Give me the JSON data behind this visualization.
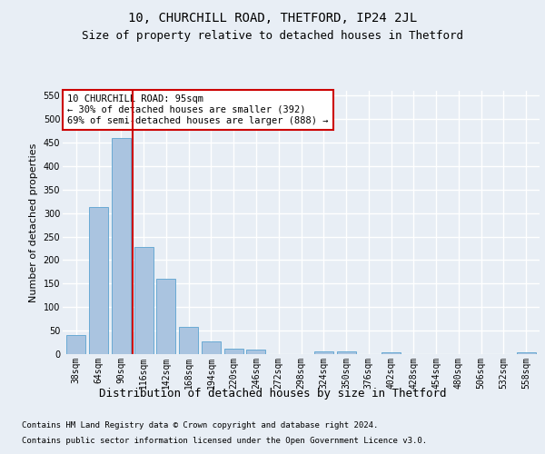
{
  "title1": "10, CHURCHILL ROAD, THETFORD, IP24 2JL",
  "title2": "Size of property relative to detached houses in Thetford",
  "xlabel": "Distribution of detached houses by size in Thetford",
  "ylabel": "Number of detached properties",
  "footnote1": "Contains HM Land Registry data © Crown copyright and database right 2024.",
  "footnote2": "Contains public sector information licensed under the Open Government Licence v3.0.",
  "categories": [
    "38sqm",
    "64sqm",
    "90sqm",
    "116sqm",
    "142sqm",
    "168sqm",
    "194sqm",
    "220sqm",
    "246sqm",
    "272sqm",
    "298sqm",
    "324sqm",
    "350sqm",
    "376sqm",
    "402sqm",
    "428sqm",
    "454sqm",
    "480sqm",
    "506sqm",
    "532sqm",
    "558sqm"
  ],
  "values": [
    40,
    312,
    460,
    228,
    160,
    57,
    27,
    12,
    9,
    0,
    0,
    5,
    6,
    0,
    3,
    0,
    0,
    0,
    0,
    0,
    4
  ],
  "bar_color": "#aac4e0",
  "bar_edge_color": "#6aaad4",
  "bar_edge_width": 0.7,
  "vline_x": 2.5,
  "vline_color": "#cc0000",
  "annotation_text": "10 CHURCHILL ROAD: 95sqm\n← 30% of detached houses are smaller (392)\n69% of semi-detached houses are larger (888) →",
  "annotation_box_color": "#ffffff",
  "annotation_box_edge_color": "#cc0000",
  "ylim": [
    0,
    560
  ],
  "yticks": [
    0,
    50,
    100,
    150,
    200,
    250,
    300,
    350,
    400,
    450,
    500,
    550
  ],
  "bg_color": "#e8eef5",
  "plot_bg_color": "#e8eef5",
  "grid_color": "#ffffff",
  "title1_fontsize": 10,
  "title2_fontsize": 9,
  "xlabel_fontsize": 9,
  "ylabel_fontsize": 8,
  "tick_fontsize": 7,
  "footnote_fontsize": 6.5
}
